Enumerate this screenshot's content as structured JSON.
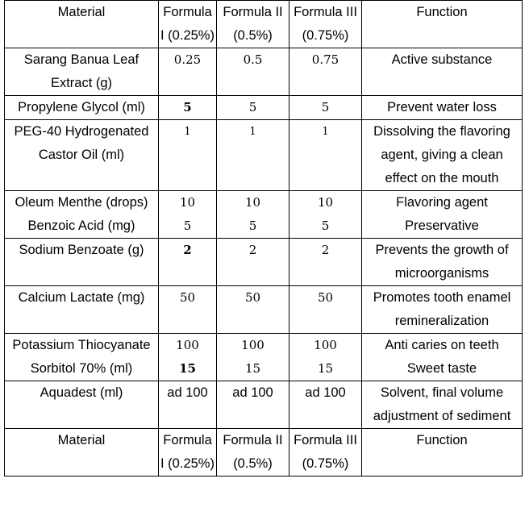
{
  "header": {
    "material": "Material",
    "f1": [
      "Formula",
      "I (0.25%)"
    ],
    "f2": [
      "Formula II",
      "(0.5%)"
    ],
    "f3": [
      "Formula III",
      "(0.75%)"
    ],
    "function": "Function"
  },
  "rows": [
    {
      "material": [
        "Sarang Banua Leaf",
        "Extract (g)"
      ],
      "f1": "0.25",
      "f2": "0.5",
      "f3": "0.75",
      "function": [
        "Active substance"
      ]
    },
    {
      "material": [
        "Propylene Glycol (ml)"
      ],
      "f1": "5",
      "f2": "5",
      "f3": "5",
      "function": [
        "Prevent water loss"
      ]
    },
    {
      "material": [
        "PEG-40 Hydrogenated",
        "Castor Oil (ml)"
      ],
      "f1": "1",
      "f2": "1",
      "f3": "1",
      "function": [
        "Dissolving the flavoring",
        "agent, giving a clean",
        "effect on the mouth"
      ]
    },
    {
      "material": [
        "Oleum Menthe (drops)",
        "Benzoic Acid (mg)"
      ],
      "f1": [
        "10",
        "5"
      ],
      "f2": [
        "10",
        "5"
      ],
      "f3": [
        "10",
        "5"
      ],
      "function": [
        "Flavoring agent",
        "Preservative"
      ]
    },
    {
      "material": [
        "Sodium Benzoate (g)"
      ],
      "f1": "2",
      "f2": "2",
      "f3": "2",
      "function": [
        "Prevents the growth of",
        "microorganisms"
      ]
    },
    {
      "material": [
        "Calcium Lactate (mg)"
      ],
      "f1": "50",
      "f2": "50",
      "f3": "50",
      "function": [
        "Promotes tooth enamel",
        "remineralization"
      ]
    },
    {
      "material": [
        "Potassium Thiocyanate",
        "Sorbitol 70% (ml)"
      ],
      "f1": [
        "100",
        "15"
      ],
      "f2": [
        "100",
        "15"
      ],
      "f3": [
        "100",
        "15"
      ],
      "function": [
        "Anti caries on teeth",
        "Sweet taste"
      ]
    },
    {
      "material": [
        "Aquadest (ml)"
      ],
      "f1": "ad 100",
      "f2": "ad 100",
      "f3": "ad 100",
      "function": [
        "Solvent, final volume",
        "adjustment of sediment"
      ]
    }
  ],
  "footer": {
    "material": "Material",
    "f1": [
      "Formula",
      "I (0.25%)"
    ],
    "f2": [
      "Formula II",
      "(0.5%)"
    ],
    "f3": [
      "Formula III",
      "(0.75%)"
    ],
    "function": "Function"
  }
}
